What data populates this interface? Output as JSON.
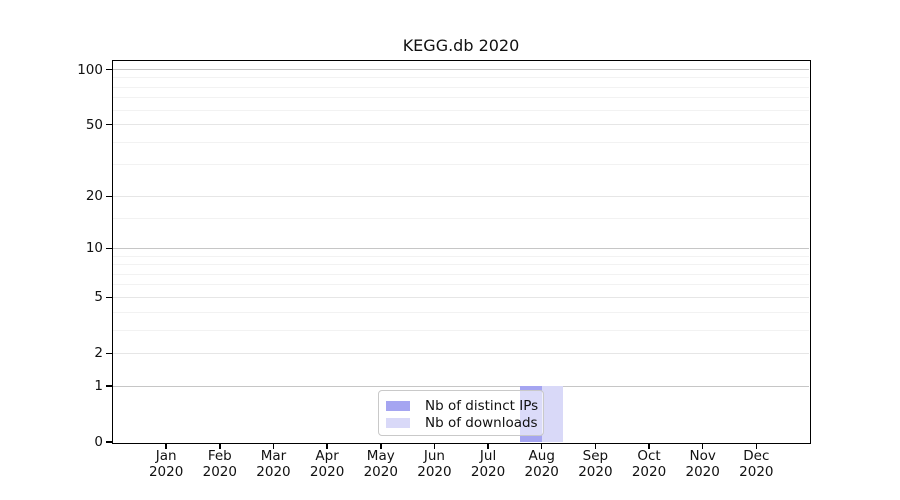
{
  "title": "KEGG.db 2020",
  "colors": {
    "bar_distinct_ips": "#a5a5f1",
    "bar_downloads": "#d9d9f8",
    "axis": "#000000",
    "grid_decade": "#c6c6c6",
    "grid_major": "#e6e6e6",
    "grid_minor": "#f2f2f2",
    "text": "#111111",
    "legend_border": "#c9c9c9"
  },
  "y_axis": {
    "scale": "log1p",
    "tick_values": [
      0,
      1,
      2,
      5,
      10,
      20,
      50,
      100
    ],
    "decade_gridlines": [
      1,
      10,
      100
    ],
    "major_gridlines": [
      2,
      5,
      20,
      50
    ],
    "minor_gridlines": [
      3,
      4,
      6,
      7,
      8,
      9,
      15,
      30,
      40,
      60,
      70,
      80,
      90
    ],
    "ylim": [
      0,
      113
    ]
  },
  "x_axis": {
    "year": "2020",
    "months": [
      "Jan",
      "Feb",
      "Mar",
      "Apr",
      "May",
      "Jun",
      "Jul",
      "Aug",
      "Sep",
      "Oct",
      "Nov",
      "Dec"
    ]
  },
  "legend": {
    "items": [
      {
        "label": "Nb of distinct IPs",
        "color_key": "bar_distinct_ips"
      },
      {
        "label": "Nb of downloads",
        "color_key": "bar_downloads"
      }
    ]
  },
  "chart_data": {
    "type": "bar",
    "title": "KEGG.db 2020",
    "categories": [
      "Jan 2020",
      "Feb 2020",
      "Mar 2020",
      "Apr 2020",
      "May 2020",
      "Jun 2020",
      "Jul 2020",
      "Aug 2020",
      "Sep 2020",
      "Oct 2020",
      "Nov 2020",
      "Dec 2020"
    ],
    "series": [
      {
        "name": "Nb of distinct IPs",
        "color_key": "bar_distinct_ips",
        "values": [
          0,
          0,
          0,
          0,
          0,
          0,
          0,
          1,
          0,
          0,
          0,
          0
        ]
      },
      {
        "name": "Nb of downloads",
        "color_key": "bar_downloads",
        "values": [
          0,
          0,
          0,
          0,
          0,
          0,
          0,
          1,
          0,
          0,
          0,
          0
        ]
      }
    ],
    "yscale": "log1p",
    "yticks": [
      0,
      1,
      2,
      5,
      10,
      20,
      50,
      100
    ],
    "ylim": [
      0,
      113
    ],
    "xlabel": "",
    "ylabel": "",
    "grid": true,
    "legend_position": "lower center"
  }
}
